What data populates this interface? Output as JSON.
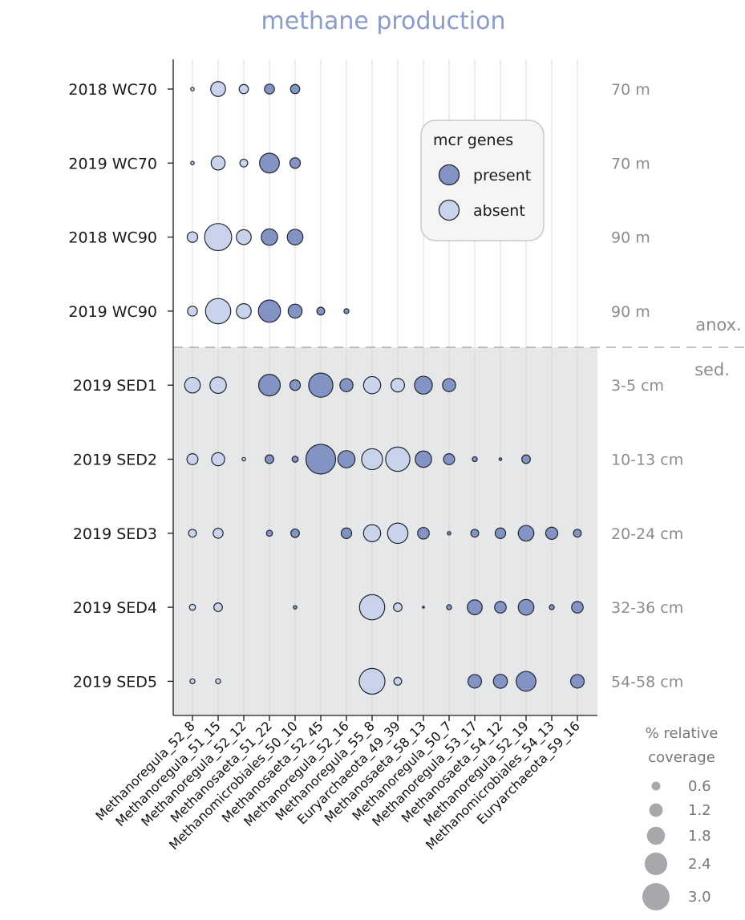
{
  "chart_data": {
    "type": "scatter",
    "title": "methane production",
    "categories": [
      "Methanoregula_52_8",
      "Methanoregula_51_15",
      "Methanoregula_52_12",
      "Methanosaeta_51_22",
      "Methanomicrobiales_50_10",
      "Methanosaeta_52_45",
      "Methanoregula_52_16",
      "Methanoregula_55_8",
      "Euryarchaeota_49_39",
      "Methanosaeta_58_13",
      "Methanoregula_50_7",
      "Methanoregula_53_17",
      "Methanosaeta_54_12",
      "Methanoregula_52_19",
      "Methanomicrobiales_54_13",
      "Euryarchaeota_59_16"
    ],
    "mcr_present": [
      false,
      false,
      false,
      true,
      true,
      true,
      true,
      false,
      false,
      true,
      true,
      true,
      true,
      true,
      true,
      true
    ],
    "samples": [
      {
        "label": "2018 WC70",
        "depth": "70 m",
        "coverage": [
          0.05,
          0.9,
          0.35,
          0.4,
          0.35,
          null,
          null,
          null,
          null,
          null,
          null,
          null,
          null,
          null,
          null,
          null
        ]
      },
      {
        "label": "2019 WC70",
        "depth": "70 m",
        "coverage": [
          0.05,
          0.8,
          0.25,
          1.6,
          0.45,
          null,
          null,
          null,
          null,
          null,
          null,
          null,
          null,
          null,
          null,
          null
        ]
      },
      {
        "label": "2018 WC90",
        "depth": "90 m",
        "coverage": [
          0.45,
          3.0,
          0.9,
          1.1,
          1.0,
          null,
          null,
          null,
          null,
          null,
          null,
          null,
          null,
          null,
          null,
          null
        ]
      },
      {
        "label": "2019 WC90",
        "depth": "90 m",
        "coverage": [
          0.4,
          2.6,
          0.9,
          2.0,
          0.8,
          0.25,
          0.1,
          null,
          null,
          null,
          null,
          null,
          null,
          null,
          null,
          null
        ]
      },
      {
        "label": "2019 SED1",
        "depth": "3-5 cm",
        "coverage": [
          1.0,
          1.1,
          null,
          1.9,
          0.45,
          2.4,
          0.7,
          1.2,
          0.75,
          1.3,
          0.7,
          null,
          null,
          null,
          null,
          null
        ]
      },
      {
        "label": "2019 SED2",
        "depth": "10-13 cm",
        "coverage": [
          0.5,
          0.7,
          0.05,
          0.3,
          0.15,
          3.6,
          1.2,
          1.8,
          2.4,
          1.1,
          0.5,
          0.1,
          0.03,
          0.3,
          null,
          null
        ]
      },
      {
        "label": "2019 SED3",
        "depth": "20-24 cm",
        "coverage": [
          0.25,
          0.4,
          null,
          0.15,
          0.3,
          null,
          0.45,
          1.2,
          1.7,
          0.55,
          0.05,
          0.25,
          0.45,
          1.0,
          0.6,
          0.25
        ]
      },
      {
        "label": "2019 SED4",
        "depth": "32-36 cm",
        "coverage": [
          0.15,
          0.3,
          null,
          null,
          0.05,
          null,
          null,
          2.6,
          0.3,
          0.01,
          0.1,
          0.9,
          0.55,
          1.0,
          0.1,
          0.55
        ]
      },
      {
        "label": "2019 SED5",
        "depth": "54-58 cm",
        "coverage": [
          0.1,
          0.1,
          null,
          null,
          null,
          null,
          null,
          2.7,
          0.25,
          null,
          null,
          0.75,
          0.8,
          1.6,
          null,
          0.75
        ]
      }
    ],
    "zones": {
      "upper": "anox.",
      "lower": "sed."
    },
    "legend": {
      "title": "mcr genes",
      "present_label": "present",
      "absent_label": "absent"
    },
    "size_legend": {
      "title_line1": "% relative",
      "title_line2": "coverage",
      "values": [
        0.6,
        1.2,
        1.8,
        2.4,
        3.0
      ]
    },
    "colors": {
      "present": "#8293c4",
      "absent": "#c9d4ec",
      "stroke": "#23262e",
      "sediment_bg": "#e6e7e9",
      "grid": "#d9d9d9",
      "title": "#8a9cc8",
      "size_swatch": "#a6a8ab"
    }
  }
}
